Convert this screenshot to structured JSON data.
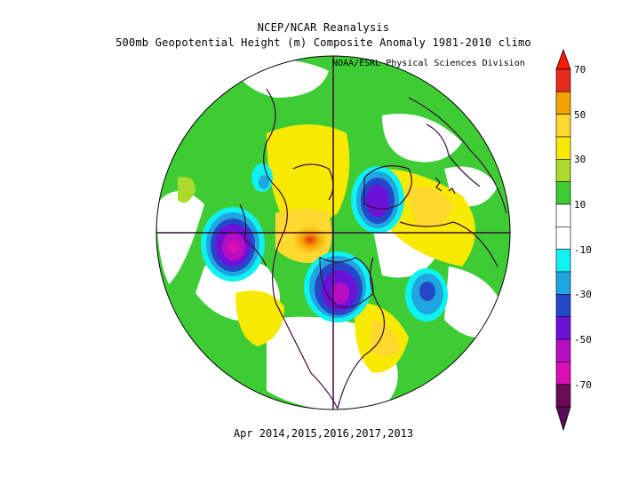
{
  "titles": {
    "line1": "NCEP/NCAR Reanalysis",
    "line2": "500mb Geopotential Height (m) Composite Anomaly 1981-2010 climo",
    "credit": "NOAA/ESRL Physical Sciences Division",
    "footer": "Apr 2014,2015,2016,2017,2013"
  },
  "colorbar": {
    "labels": [
      "70",
      "50",
      "30",
      "10",
      "-10",
      "-30",
      "-50",
      "-70"
    ],
    "levels": [
      {
        "color": "#e52b1b",
        "range": "60-70"
      },
      {
        "color": "#f4a200",
        "range": "50-60"
      },
      {
        "color": "#ffd92f",
        "range": "40-50"
      },
      {
        "color": "#f7e900",
        "range": "30-40"
      },
      {
        "color": "#a9dc2a",
        "range": "20-30"
      },
      {
        "color": "#3ecc35",
        "range": "10-20"
      },
      {
        "color": "#ffffff",
        "range": "0-10"
      },
      {
        "color": "#ffffff",
        "range": "-10-0"
      },
      {
        "color": "#0ff2f2",
        "range": "-20--10"
      },
      {
        "color": "#1fa6e0",
        "range": "-30--20"
      },
      {
        "color": "#2448c8",
        "range": "-40--30"
      },
      {
        "color": "#6c11d8",
        "range": "-50--40"
      },
      {
        "color": "#b70ec4",
        "range": "-60--50"
      },
      {
        "color": "#d90fb3",
        "range": "-70--60"
      },
      {
        "color": "#6a0a58",
        "range": "<-70"
      }
    ],
    "top_arrow_color": "#ff1a00",
    "bottom_arrow_color": "#5a0a55"
  },
  "map": {
    "projection": "north-polar-stereographic",
    "coastline_color": "#3a0a3a",
    "background_fill": "#3ecc35"
  }
}
